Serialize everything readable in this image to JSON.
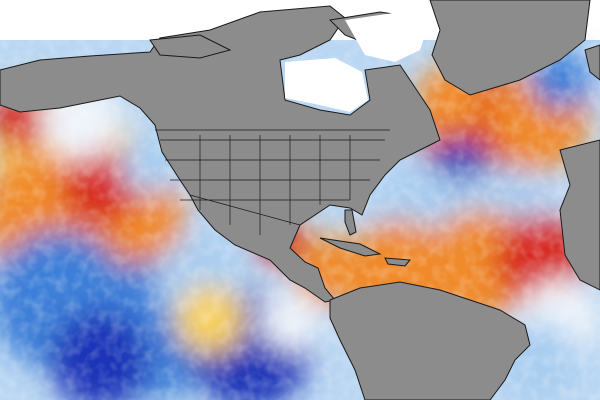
{
  "map": {
    "subject": "sea-surface-temperature-anomaly",
    "colors": {
      "land": "#8c8c8c",
      "border": "#1a1a1a",
      "ice": "#ffffff",
      "no_data": "#ffffff",
      "warm_strong": "#d7261e",
      "warm": "#f08a2a",
      "warm_light": "#f8d060",
      "neutral": "#eef4fb",
      "cool_light": "#a9cdf0",
      "cool": "#3e7fd8",
      "cool_strong": "#1a36b8"
    }
  }
}
